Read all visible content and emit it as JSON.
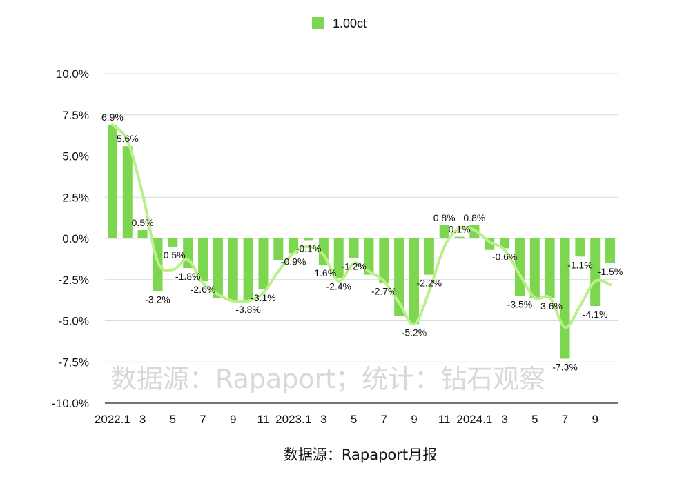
{
  "chart_data": {
    "type": "bar",
    "legend": {
      "position": "top-center",
      "entries": [
        "1.00ct"
      ]
    },
    "series": [
      {
        "name": "1.00ct",
        "color": "#7dd64f",
        "values": [
          6.9,
          5.6,
          0.5,
          -3.2,
          -0.5,
          -1.8,
          -2.6,
          -3.6,
          -3.8,
          -3.8,
          -3.1,
          -1.3,
          -0.9,
          -0.1,
          -1.6,
          -2.4,
          -1.2,
          -2.2,
          -2.7,
          -4.7,
          -5.2,
          -2.2,
          0.8,
          0.1,
          0.8,
          -0.7,
          -0.6,
          -3.5,
          -3.6,
          -3.6,
          -7.3,
          -1.1,
          -4.1,
          -1.5
        ]
      }
    ],
    "trend_line": {
      "color": "#b9f08a",
      "values": [
        6.9,
        5.9,
        2.7,
        -1.4,
        -1.9,
        -1.3,
        -2.7,
        -3.4,
        -3.8,
        -3.8,
        -3.3,
        -2.0,
        -0.9,
        -0.5,
        -1.0,
        -2.6,
        -1.5,
        -2.0,
        -2.6,
        -3.9,
        -5.2,
        -3.2,
        -0.5,
        0.6,
        0.5,
        -0.2,
        -0.7,
        -2.2,
        -3.6,
        -3.6,
        -5.4,
        -4.1,
        -2.6,
        -2.8
      ]
    },
    "data_labels": [
      {
        "i": 0,
        "text": "6.9%"
      },
      {
        "i": 1,
        "text": "5.6%"
      },
      {
        "i": 2,
        "text": "0.5%"
      },
      {
        "i": 3,
        "text": "-3.2%"
      },
      {
        "i": 4,
        "text": "-0.5%"
      },
      {
        "i": 5,
        "text": "-1.8%"
      },
      {
        "i": 6,
        "text": "-2.6%"
      },
      {
        "i": 9,
        "text": "-3.8%"
      },
      {
        "i": 10,
        "text": "-3.1%"
      },
      {
        "i": 12,
        "text": "-0.9%"
      },
      {
        "i": 13,
        "text": "-0.1%"
      },
      {
        "i": 14,
        "text": "-1.6%"
      },
      {
        "i": 15,
        "text": "-2.4%"
      },
      {
        "i": 16,
        "text": "-1.2%"
      },
      {
        "i": 18,
        "text": "-2.7%"
      },
      {
        "i": 20,
        "text": "-5.2%"
      },
      {
        "i": 21,
        "text": "-2.2%"
      },
      {
        "i": 22,
        "text": "0.8%"
      },
      {
        "i": 23,
        "text": "0.1%"
      },
      {
        "i": 24,
        "text": "0.8%"
      },
      {
        "i": 26,
        "text": "-0.6%"
      },
      {
        "i": 27,
        "text": "-3.5%"
      },
      {
        "i": 29,
        "text": "-3.6%"
      },
      {
        "i": 30,
        "text": "-7.3%"
      },
      {
        "i": 31,
        "text": "-1.1%"
      },
      {
        "i": 32,
        "text": "-4.1%"
      },
      {
        "i": 33,
        "text": "-1.5%"
      }
    ],
    "x_tick_labels": [
      {
        "i": 0,
        "text": "2022.1"
      },
      {
        "i": 2,
        "text": "3"
      },
      {
        "i": 4,
        "text": "5"
      },
      {
        "i": 6,
        "text": "7"
      },
      {
        "i": 8,
        "text": "9"
      },
      {
        "i": 10,
        "text": "11"
      },
      {
        "i": 12,
        "text": "2023.1"
      },
      {
        "i": 14,
        "text": "3"
      },
      {
        "i": 16,
        "text": "5"
      },
      {
        "i": 18,
        "text": "7"
      },
      {
        "i": 20,
        "text": "9"
      },
      {
        "i": 22,
        "text": "11"
      },
      {
        "i": 24,
        "text": "2024.1"
      },
      {
        "i": 26,
        "text": "3"
      },
      {
        "i": 28,
        "text": "5"
      },
      {
        "i": 30,
        "text": "7"
      },
      {
        "i": 32,
        "text": "9"
      }
    ],
    "y_ticks": [
      10,
      7.5,
      5,
      2.5,
      0,
      -2.5,
      -5,
      -7.5,
      -10
    ],
    "y_tick_labels": [
      "10.0%",
      "7.5%",
      "5.0%",
      "2.5%",
      "0.0%",
      "-2.5%",
      "-5.0%",
      "-7.5%",
      "-10.0%"
    ],
    "ylim": [
      -10,
      10
    ],
    "grid": true,
    "gridline_color": "#d9d9d9",
    "watermark": "数据源：Rapaport；统计：钻石观察",
    "source_note": "数据源：Rapaport月报"
  }
}
